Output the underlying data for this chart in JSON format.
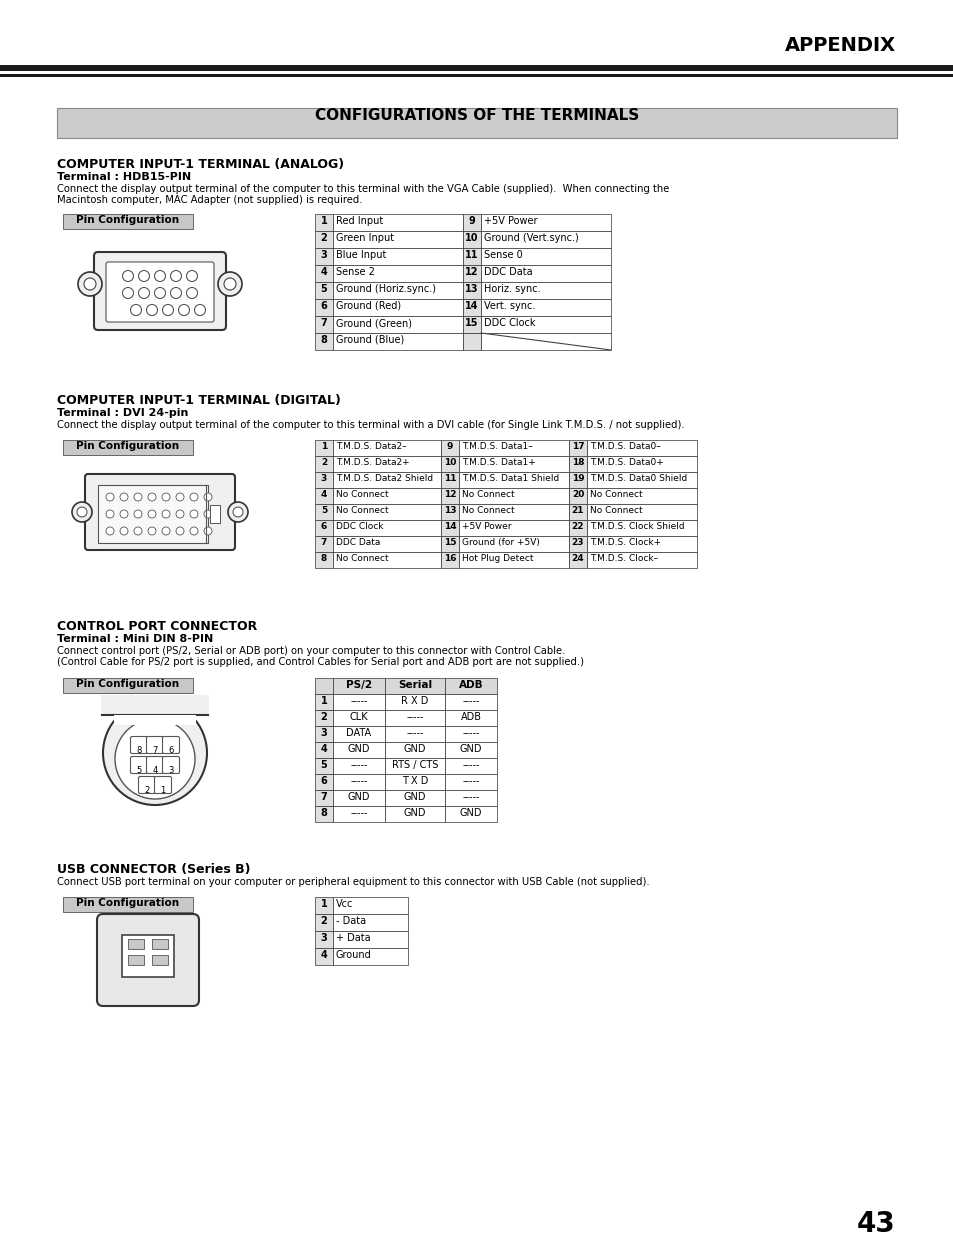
{
  "page_title": "APPENDIX",
  "main_title": "CONFIGURATIONS OF THE TERMINALS",
  "section1_title": "COMPUTER INPUT-1 TERMINAL (ANALOG)",
  "section1_sub": "Terminal : HDB15-PIN",
  "section1_desc1": "Connect the display output terminal of the computer to this terminal with the VGA Cable (supplied).  When connecting the",
  "section1_desc2": "Macintosh computer, MAC Adapter (not supplied) is required.",
  "section1_pin_label": "Pin Configuration",
  "analog_table": [
    [
      "1",
      "Red Input",
      "9",
      "+5V Power"
    ],
    [
      "2",
      "Green Input",
      "10",
      "Ground (Vert.sync.)"
    ],
    [
      "3",
      "Blue Input",
      "11",
      "Sense 0"
    ],
    [
      "4",
      "Sense 2",
      "12",
      "DDC Data"
    ],
    [
      "5",
      "Ground (Horiz.sync.)",
      "13",
      "Horiz. sync."
    ],
    [
      "6",
      "Ground (Red)",
      "14",
      "Vert. sync."
    ],
    [
      "7",
      "Ground (Green)",
      "15",
      "DDC Clock"
    ],
    [
      "8",
      "Ground (Blue)",
      "",
      ""
    ]
  ],
  "section2_title": "COMPUTER INPUT-1 TERMINAL (DIGITAL)",
  "section2_sub": "Terminal : DVI 24-pin",
  "section2_desc": "Connect the display output terminal of the computer to this terminal with a DVI cable (for Single Link T.M.D.S. / not supplied).",
  "section2_pin_label": "Pin Configuration",
  "digital_table": [
    [
      "1",
      "T.M.D.S. Data2–",
      "9",
      "T.M.D.S. Data1–",
      "17",
      "T.M.D.S. Data0–"
    ],
    [
      "2",
      "T.M.D.S. Data2+",
      "10",
      "T.M.D.S. Data1+",
      "18",
      "T.M.D.S. Data0+"
    ],
    [
      "3",
      "T.M.D.S. Data2 Shield",
      "11",
      "T.M.D.S. Data1 Shield",
      "19",
      "T.M.D.S. Data0 Shield"
    ],
    [
      "4",
      "No Connect",
      "12",
      "No Connect",
      "20",
      "No Connect"
    ],
    [
      "5",
      "No Connect",
      "13",
      "No Connect",
      "21",
      "No Connect"
    ],
    [
      "6",
      "DDC Clock",
      "14",
      "+5V Power",
      "22",
      "T.M.D.S. Clock Shield"
    ],
    [
      "7",
      "DDC Data",
      "15",
      "Ground (for +5V)",
      "23",
      "T.M.D.S. Clock+"
    ],
    [
      "8",
      "No Connect",
      "16",
      "Hot Plug Detect",
      "24",
      "T.M.D.S. Clock–"
    ]
  ],
  "section3_title": "CONTROL PORT CONNECTOR",
  "section3_sub": "Terminal : Mini DIN 8-PIN",
  "section3_desc1": "Connect control port (PS/2, Serial or ADB port) on your computer to this connector with Control Cable.",
  "section3_desc2": "(Control Cable for PS/2 port is supplied, and Control Cables for Serial port and ADB port are not supplied.)",
  "section3_pin_label": "Pin Configuration",
  "control_table_headers": [
    "",
    "PS/2",
    "Serial",
    "ADB"
  ],
  "control_table": [
    [
      "1",
      "-----",
      "R X D",
      "-----"
    ],
    [
      "2",
      "CLK",
      "-----",
      "ADB"
    ],
    [
      "3",
      "DATA",
      "-----",
      "-----"
    ],
    [
      "4",
      "GND",
      "GND",
      "GND"
    ],
    [
      "5",
      "-----",
      "RTS / CTS",
      "-----"
    ],
    [
      "6",
      "-----",
      "T X D",
      "-----"
    ],
    [
      "7",
      "GND",
      "GND",
      "-----"
    ],
    [
      "8",
      "-----",
      "GND",
      "GND"
    ]
  ],
  "section4_title": "USB CONNECTOR (Series B)",
  "section4_desc": "Connect USB port terminal on your computer or peripheral equipment to this connector with USB Cable (not supplied).",
  "section4_pin_label": "Pin Configuration",
  "usb_table": [
    [
      "1",
      "Vcc"
    ],
    [
      "2",
      "- Data"
    ],
    [
      "3",
      "+ Data"
    ],
    [
      "4",
      "Ground"
    ]
  ],
  "page_number": "43"
}
